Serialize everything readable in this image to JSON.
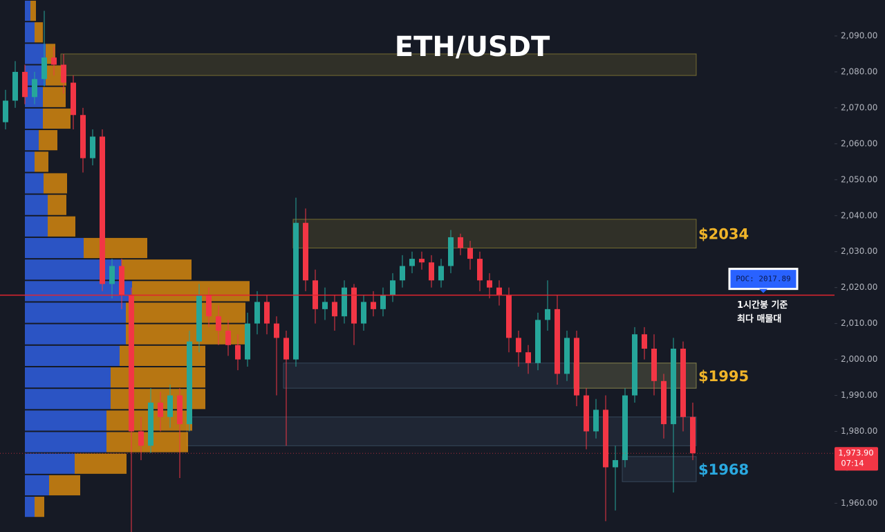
{
  "chart_data": {
    "type": "candlestick",
    "title": "ETH/USDT",
    "ylim": [
      1952,
      2100
    ],
    "yticks": [
      {
        "value": 1960,
        "label": "1,960.00"
      },
      {
        "value": 1970,
        "label": "1,970.00"
      },
      {
        "value": 1980,
        "label": "1,980.00"
      },
      {
        "value": 1990,
        "label": "1,990.00"
      },
      {
        "value": 2000,
        "label": "2,000.00"
      },
      {
        "value": 2010,
        "label": "2,010.00"
      },
      {
        "value": 2020,
        "label": "2,020.00"
      },
      {
        "value": 2030,
        "label": "2,030.00"
      },
      {
        "value": 2040,
        "label": "2,040.00"
      },
      {
        "value": 2050,
        "label": "2,050.00"
      },
      {
        "value": 2060,
        "label": "2,060.00"
      },
      {
        "value": 2070,
        "label": "2,070.00"
      },
      {
        "value": 2080,
        "label": "2,080.00"
      },
      {
        "value": 2090,
        "label": "2,090.00"
      }
    ],
    "up_color": "#26a69a",
    "down_color": "#f23645",
    "candles": {
      "open": [
        2066,
        2072,
        2080,
        2073,
        2078,
        2084,
        2082,
        2077,
        2068,
        2056,
        2062,
        2021,
        2026,
        2018,
        1980,
        1976,
        1988,
        1984,
        1990,
        1982,
        2005,
        2018,
        2012,
        2008,
        2004,
        2000,
        2010,
        2016,
        2010,
        2006,
        2000,
        2038,
        2022,
        2014,
        2016,
        2012,
        2020,
        2010,
        2016,
        2014,
        2018,
        2022,
        2026,
        2028,
        2027,
        2022,
        2026,
        2034,
        2031,
        2028,
        2022,
        2020,
        2018,
        2006,
        2002,
        1999,
        2011,
        2014,
        1996,
        2006,
        1990,
        1980,
        1986,
        1970,
        1972,
        1990,
        2007,
        2003,
        1994,
        1982,
        2003,
        1984
      ],
      "high": [
        2075,
        2083,
        2082,
        2080,
        2097,
        2087,
        2085,
        2079,
        2070,
        2064,
        2064,
        2028,
        2028,
        2020,
        1984,
        1992,
        1991,
        1993,
        1992,
        2008,
        2021,
        2020,
        2015,
        2011,
        2007,
        2013,
        2019,
        2018,
        2012,
        2008,
        2045,
        2042,
        2025,
        2020,
        2018,
        2022,
        2021,
        2018,
        2019,
        2020,
        2024,
        2029,
        2030,
        2030,
        2029,
        2028,
        2036,
        2035,
        2033,
        2030,
        2024,
        2022,
        2020,
        2008,
        2004,
        2013,
        2022,
        2018,
        2008,
        2008,
        1992,
        1989,
        1990,
        1976,
        1992,
        2009,
        2009,
        2007,
        1996,
        2006,
        2005,
        1988
      ],
      "low": [
        2064,
        2070,
        2071,
        2071,
        2076,
        2079,
        2074,
        2064,
        2052,
        2054,
        2019,
        2017,
        2014,
        1952,
        1972,
        1974,
        1980,
        1981,
        1967,
        1980,
        2002,
        2009,
        2004,
        2001,
        1997,
        1998,
        2007,
        2007,
        1990,
        1976,
        1998,
        2019,
        2010,
        2011,
        2008,
        2010,
        2004,
        2008,
        2012,
        2012,
        2016,
        2020,
        2024,
        2025,
        2020,
        2020,
        2024,
        2029,
        2025,
        2019,
        2017,
        2015,
        2002,
        1998,
        1996,
        1997,
        2008,
        1993,
        1994,
        1987,
        1975,
        1978,
        1955,
        1958,
        1970,
        1988,
        2000,
        1990,
        1978,
        1963,
        1980,
        1972
      ],
      "close": [
        2072,
        2080,
        2073,
        2078,
        2084,
        2082,
        2077,
        2068,
        2056,
        2062,
        2021,
        2026,
        2018,
        1980,
        1976,
        1988,
        1984,
        1990,
        1982,
        2005,
        2018,
        2012,
        2008,
        2004,
        2000,
        2010,
        2016,
        2010,
        2006,
        2000,
        2038,
        2022,
        2014,
        2016,
        2012,
        2020,
        2010,
        2016,
        2014,
        2018,
        2022,
        2026,
        2028,
        2027,
        2022,
        2026,
        2034,
        2031,
        2028,
        2022,
        2020,
        2018,
        2006,
        2002,
        1999,
        2011,
        2014,
        1996,
        2006,
        1990,
        1980,
        1986,
        1970,
        1972,
        1990,
        2007,
        2003,
        1994,
        1982,
        2003,
        1984,
        1973.9
      ]
    },
    "volume_profile": {
      "bins": [
        1956,
        1962,
        1968,
        1974,
        1980,
        1986,
        1992,
        1998,
        2004,
        2010,
        2016,
        2022,
        2028,
        2034,
        2040,
        2046,
        2052,
        2058,
        2064,
        2070,
        2076,
        2082,
        2088,
        2094,
        2100
      ],
      "up": [
        14,
        35,
        72,
        118,
        118,
        124,
        124,
        137,
        146,
        146,
        155,
        140,
        85,
        33,
        33,
        27,
        14,
        20,
        26,
        26,
        30,
        30,
        14,
        8
      ],
      "down": [
        14,
        45,
        75,
        118,
        124,
        137,
        137,
        124,
        176,
        173,
        170,
        101,
        92,
        40,
        27,
        34,
        20,
        27,
        40,
        33,
        30,
        14,
        12,
        8
      ],
      "up_color": "#2e5bd6",
      "down_color": "#d4870f"
    },
    "zones": [
      {
        "low": 2079,
        "high": 2085,
        "from": 6,
        "color": "#b8a63a"
      },
      {
        "low": 2031,
        "high": 2039,
        "from": 30,
        "color": "#b8a63a",
        "label": "$2034",
        "label_color": "#f0b429"
      },
      {
        "low": 1992,
        "high": 1999,
        "from": 29,
        "color": "#4f6a82"
      },
      {
        "low": 1992,
        "high": 1999,
        "from": 59,
        "color": "#b8a63a",
        "label": "$1995",
        "label_color": "#f0b429"
      },
      {
        "low": 1976,
        "high": 1984,
        "from": 19,
        "color": "#4f6a82"
      },
      {
        "low": 1966,
        "high": 1973,
        "from": 64,
        "color": "#4f6a82",
        "label": "$1968",
        "label_color": "#2aa9e0"
      }
    ],
    "poc": {
      "value": 2017.89,
      "label": "POC: 2017.89",
      "note": [
        "1시간봉 기준",
        "최다 매물대"
      ],
      "color": "#e0242f"
    },
    "last_price": {
      "value": 1973.9,
      "label": "1,973.90",
      "timer": "07:14"
    }
  }
}
